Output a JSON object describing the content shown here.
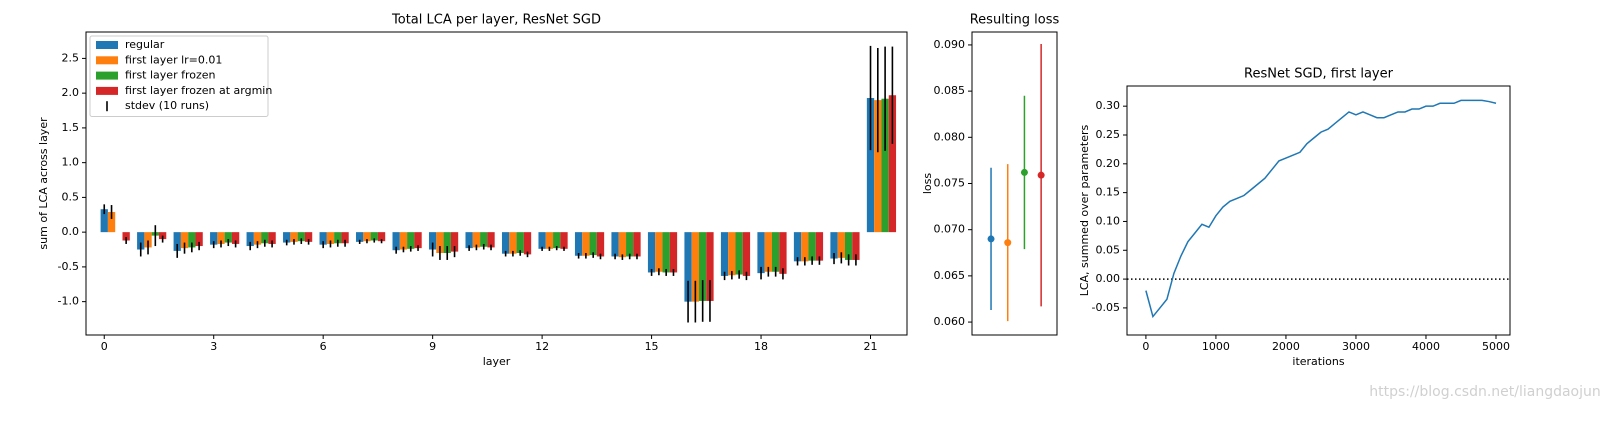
{
  "chart_data": [
    {
      "type": "bar",
      "title": "Total LCA per layer, ResNet SGD",
      "xlabel": "layer",
      "ylabel": "sum of LCA across layer",
      "x": [
        0,
        1,
        2,
        3,
        4,
        5,
        6,
        7,
        8,
        9,
        10,
        11,
        12,
        13,
        14,
        15,
        16,
        17,
        18,
        19,
        20,
        21
      ],
      "xlim": [
        -0.5,
        22
      ],
      "xticks": [
        0,
        3,
        6,
        9,
        12,
        15,
        18,
        21
      ],
      "ylim": [
        -1.48,
        2.88
      ],
      "yticks": [
        {
          "value": -1.0,
          "label": "-1.0"
        },
        -0.5,
        {
          "value": 0.0,
          "label": "0.0"
        },
        0.5,
        {
          "value": 1.0,
          "label": "1.0"
        },
        1.5,
        {
          "value": 2.0,
          "label": "2.0"
        },
        2.5
      ],
      "legend": "upper left",
      "error_label": "stdev (10 runs)",
      "error_color": "#000000",
      "series": [
        {
          "name": "regular",
          "color": "#1f77b4",
          "values": [
            0.33,
            -0.25,
            -0.27,
            -0.18,
            -0.2,
            -0.15,
            -0.18,
            -0.14,
            -0.26,
            -0.25,
            -0.23,
            -0.31,
            -0.24,
            -0.34,
            -0.35,
            -0.58,
            -1.0,
            -0.63,
            -0.59,
            -0.42,
            -0.38,
            1.93
          ],
          "errors": [
            0.07,
            0.1,
            0.1,
            0.05,
            0.06,
            0.04,
            0.05,
            0.03,
            0.05,
            0.1,
            0.04,
            0.04,
            0.03,
            0.04,
            0.04,
            0.05,
            0.3,
            0.06,
            0.09,
            0.06,
            0.08,
            0.75
          ]
        },
        {
          "name": "first layer lr=0.01",
          "color": "#ff7f0e",
          "values": [
            0.29,
            -0.22,
            -0.23,
            -0.17,
            -0.18,
            -0.14,
            -0.17,
            -0.13,
            -0.25,
            -0.3,
            -0.22,
            -0.31,
            -0.24,
            -0.34,
            -0.36,
            -0.57,
            -1.0,
            -0.62,
            -0.57,
            -0.42,
            -0.37,
            1.9
          ],
          "errors": [
            0.1,
            0.1,
            0.08,
            0.05,
            0.05,
            0.04,
            0.05,
            0.03,
            0.04,
            0.1,
            0.04,
            0.04,
            0.03,
            0.04,
            0.04,
            0.05,
            0.3,
            0.06,
            0.07,
            0.06,
            0.08,
            0.75
          ]
        },
        {
          "name": "first layer frozen",
          "color": "#2ca02c",
          "values": [
            0.0,
            -0.05,
            -0.22,
            -0.15,
            -0.16,
            -0.13,
            -0.16,
            -0.12,
            -0.24,
            -0.3,
            -0.21,
            -0.3,
            -0.23,
            -0.33,
            -0.35,
            -0.58,
            -0.99,
            -0.61,
            -0.57,
            -0.41,
            -0.4,
            1.92
          ],
          "errors": [
            0.0,
            0.15,
            0.07,
            0.05,
            0.05,
            0.04,
            0.05,
            0.03,
            0.04,
            0.1,
            0.04,
            0.04,
            0.03,
            0.04,
            0.04,
            0.05,
            0.3,
            0.06,
            0.07,
            0.06,
            0.08,
            0.75
          ]
        },
        {
          "name": "first layer frozen at argmin",
          "color": "#d62728",
          "values": [
            -0.12,
            -0.1,
            -0.2,
            -0.17,
            -0.17,
            -0.14,
            -0.16,
            -0.13,
            -0.23,
            -0.28,
            -0.22,
            -0.32,
            -0.24,
            -0.35,
            -0.35,
            -0.58,
            -0.99,
            -0.63,
            -0.6,
            -0.41,
            -0.4,
            1.97
          ],
          "errors": [
            0.05,
            0.05,
            0.06,
            0.05,
            0.05,
            0.04,
            0.05,
            0.03,
            0.04,
            0.08,
            0.04,
            0.04,
            0.03,
            0.04,
            0.04,
            0.05,
            0.3,
            0.06,
            0.08,
            0.06,
            0.08,
            0.7
          ]
        }
      ]
    },
    {
      "type": "errorbar",
      "title": "Resulting loss",
      "ylabel": "loss",
      "values": [
        0.069,
        0.0686,
        0.0762,
        0.0759
      ],
      "errors": [
        0.0077,
        0.0085,
        0.0083,
        0.0142
      ],
      "colors": [
        "#1f77b4",
        "#ff7f0e",
        "#2ca02c",
        "#d62728"
      ],
      "xlim": [
        -1.14,
        3.95
      ],
      "ylim": [
        0.0586,
        0.0914
      ],
      "yticks": [
        {
          "value": 0.06,
          "label": "0.060"
        },
        0.065,
        {
          "value": 0.07,
          "label": "0.070"
        },
        0.075,
        {
          "value": 0.08,
          "label": "0.080"
        },
        0.085,
        {
          "value": 0.09,
          "label": "0.090"
        }
      ]
    },
    {
      "type": "line",
      "title": "ResNet SGD, first layer",
      "xlabel": "iterations",
      "ylabel": "LCA, summed over parameters",
      "color": "#1f77b4",
      "x": [
        0,
        100,
        200,
        300,
        400,
        500,
        600,
        700,
        800,
        900,
        1000,
        1100,
        1200,
        1300,
        1400,
        1500,
        1600,
        1700,
        1800,
        1900,
        2000,
        2100,
        2200,
        2300,
        2400,
        2500,
        2600,
        2700,
        2800,
        2900,
        3000,
        3100,
        3200,
        3300,
        3400,
        3500,
        3600,
        3700,
        3800,
        3900,
        4000,
        4100,
        4200,
        4300,
        4400,
        4500,
        4600,
        4700,
        4800,
        4900,
        5000
      ],
      "values": [
        -0.02,
        -0.065,
        -0.05,
        -0.035,
        0.01,
        0.04,
        0.065,
        0.08,
        0.095,
        0.09,
        0.11,
        0.125,
        0.135,
        0.14,
        0.145,
        0.155,
        0.165,
        0.175,
        0.19,
        0.205,
        0.21,
        0.215,
        0.22,
        0.235,
        0.245,
        0.255,
        0.26,
        0.27,
        0.28,
        0.29,
        0.285,
        0.29,
        0.285,
        0.28,
        0.28,
        0.285,
        0.29,
        0.29,
        0.295,
        0.295,
        0.3,
        0.3,
        0.305,
        0.305,
        0.305,
        0.31,
        0.31,
        0.31,
        0.31,
        0.308,
        0.305
      ],
      "xlim": [
        -270,
        5200
      ],
      "xticks": [
        0,
        1000,
        2000,
        3000,
        4000,
        5000
      ],
      "ylim": [
        -0.097,
        0.335
      ],
      "yticks": [
        -0.05,
        {
          "value": 0.0,
          "label": "0.00"
        },
        0.05,
        {
          "value": 0.1,
          "label": "0.10"
        },
        0.15,
        {
          "value": 0.2,
          "label": "0.20"
        },
        0.25,
        {
          "value": 0.3,
          "label": "0.30"
        }
      ],
      "reference_line": {
        "value": 0,
        "style": "dotted",
        "color": "#000000"
      }
    }
  ],
  "watermark": "https://blog.csdn.net/liangdaojun"
}
